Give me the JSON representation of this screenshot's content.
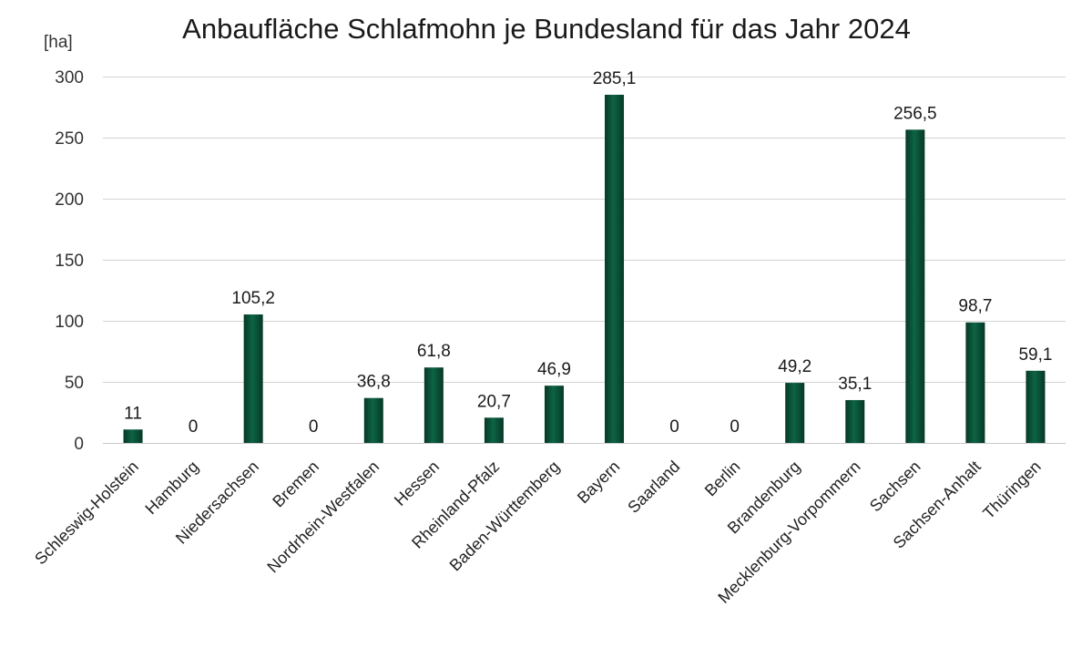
{
  "chart_data": {
    "type": "bar",
    "title": "Anbaufläche Schlafmohn je Bundesland für das Jahr 2024",
    "ylabel": "[ha]",
    "xlabel": "",
    "ylim": [
      0,
      300
    ],
    "yticks": [
      0,
      50,
      100,
      150,
      200,
      250,
      300
    ],
    "grid": true,
    "bar_color": "#0b5a3c",
    "categories": [
      "Schleswig-Holstein",
      "Hamburg",
      "Niedersachsen",
      "Bremen",
      "Nordrhein-Westfalen",
      "Hessen",
      "Rheinland-Pfalz",
      "Baden-Württemberg",
      "Bayern",
      "Saarland",
      "Berlin",
      "Brandenburg",
      "Mecklenburg-Vorpommern",
      "Sachsen",
      "Sachsen-Anhalt",
      "Thüringen"
    ],
    "values": [
      11,
      0,
      105.2,
      0,
      36.8,
      61.8,
      20.7,
      46.9,
      285.1,
      0,
      0,
      49.2,
      35.1,
      256.5,
      98.7,
      59.1
    ],
    "data_labels": [
      "11",
      "0",
      "105,2",
      "0",
      "36,8",
      "61,8",
      "20,7",
      "46,9",
      "285,1",
      "0",
      "0",
      "49,2",
      "35,1",
      "256,5",
      "98,7",
      "59,1"
    ]
  }
}
